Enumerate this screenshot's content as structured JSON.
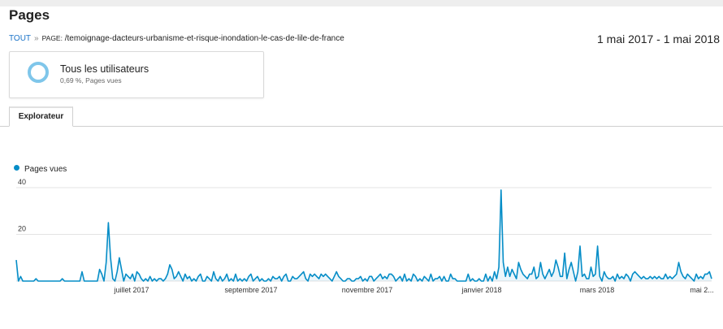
{
  "page": {
    "title": "Pages"
  },
  "breadcrumb": {
    "root": "TOUT",
    "separator": "»",
    "page_label": "PAGE:",
    "page_path": "/temoignage-dacteurs-urbanisme-et-risque-inondation-le-cas-de-lile-de-france"
  },
  "date_range": "1 mai 2017 - 1 mai 2018",
  "segment": {
    "name": "Tous les utilisateurs",
    "detail": "0,69 %, Pages vues"
  },
  "tabs": [
    {
      "label": "Explorateur"
    }
  ],
  "colors": {
    "series": "#058dc7",
    "segment_ring": "#7fc6ea",
    "grid": "#e3e3e3"
  },
  "chart_data": {
    "type": "line",
    "series": [
      {
        "name": "Pages vues",
        "values": [
          9,
          0,
          2,
          0,
          0,
          0,
          0,
          0,
          0,
          1,
          0,
          0,
          0,
          0,
          0,
          0,
          0,
          0,
          0,
          0,
          0,
          1,
          0,
          0,
          0,
          0,
          0,
          0,
          0,
          0,
          4,
          0,
          0,
          0,
          0,
          0,
          0,
          0,
          5,
          3,
          0,
          8,
          25,
          10,
          1,
          0,
          4,
          10,
          5,
          0,
          3,
          2,
          1,
          3,
          0,
          4,
          3,
          1,
          0,
          1,
          0,
          2,
          0,
          1,
          0,
          1,
          1,
          0,
          1,
          3,
          7,
          5,
          1,
          2,
          4,
          2,
          0,
          3,
          1,
          2,
          0,
          1,
          0,
          2,
          3,
          0,
          0,
          2,
          1,
          0,
          4,
          1,
          0,
          2,
          0,
          1,
          3,
          0,
          1,
          0,
          3,
          0,
          1,
          0,
          1,
          0,
          2,
          3,
          0,
          1,
          2,
          0,
          1,
          0,
          0,
          1,
          0,
          2,
          1,
          1,
          2,
          0,
          2,
          3,
          0,
          0,
          2,
          1,
          1,
          2,
          3,
          4,
          1,
          0,
          3,
          2,
          3,
          2,
          1,
          3,
          2,
          3,
          2,
          1,
          0,
          2,
          4,
          2,
          1,
          0,
          0,
          1,
          1,
          0,
          0,
          1,
          1,
          2,
          0,
          1,
          0,
          2,
          2,
          0,
          1,
          2,
          3,
          1,
          2,
          1,
          3,
          3,
          2,
          0,
          1,
          2,
          0,
          3,
          0,
          1,
          0,
          3,
          2,
          0,
          1,
          0,
          2,
          1,
          0,
          3,
          0,
          1,
          1,
          2,
          0,
          2,
          0,
          0,
          3,
          1,
          1,
          0,
          0,
          0,
          0,
          0,
          3,
          0,
          1,
          0,
          0,
          1,
          0,
          0,
          3,
          0,
          2,
          0,
          4,
          1,
          6,
          39,
          8,
          2,
          6,
          2,
          5,
          3,
          1,
          8,
          5,
          3,
          2,
          1,
          3,
          3,
          6,
          1,
          2,
          8,
          3,
          1,
          3,
          5,
          2,
          4,
          9,
          6,
          2,
          2,
          12,
          1,
          5,
          8,
          4,
          0,
          4,
          15,
          2,
          3,
          1,
          1,
          6,
          2,
          3,
          15,
          2,
          0,
          4,
          2,
          1,
          1,
          2,
          0,
          3,
          1,
          2,
          1,
          3,
          2,
          0,
          3,
          4,
          3,
          2,
          1,
          2,
          1,
          1,
          2,
          1,
          2,
          1,
          2,
          1,
          1,
          3,
          1,
          2,
          1,
          2,
          3,
          8,
          4,
          2,
          1,
          3,
          2,
          1,
          0,
          3,
          1,
          2,
          1,
          3,
          3,
          4,
          1
        ]
      }
    ],
    "x_tick_labels": [
      "juillet 2017",
      "septembre 2017",
      "novembre 2017",
      "janvier 2018",
      "mars 2018",
      "mai 2..."
    ],
    "y_tick_labels": [
      "40",
      "20"
    ],
    "ylim": [
      0,
      40
    ],
    "grid": true,
    "legend_position": "top-left"
  }
}
